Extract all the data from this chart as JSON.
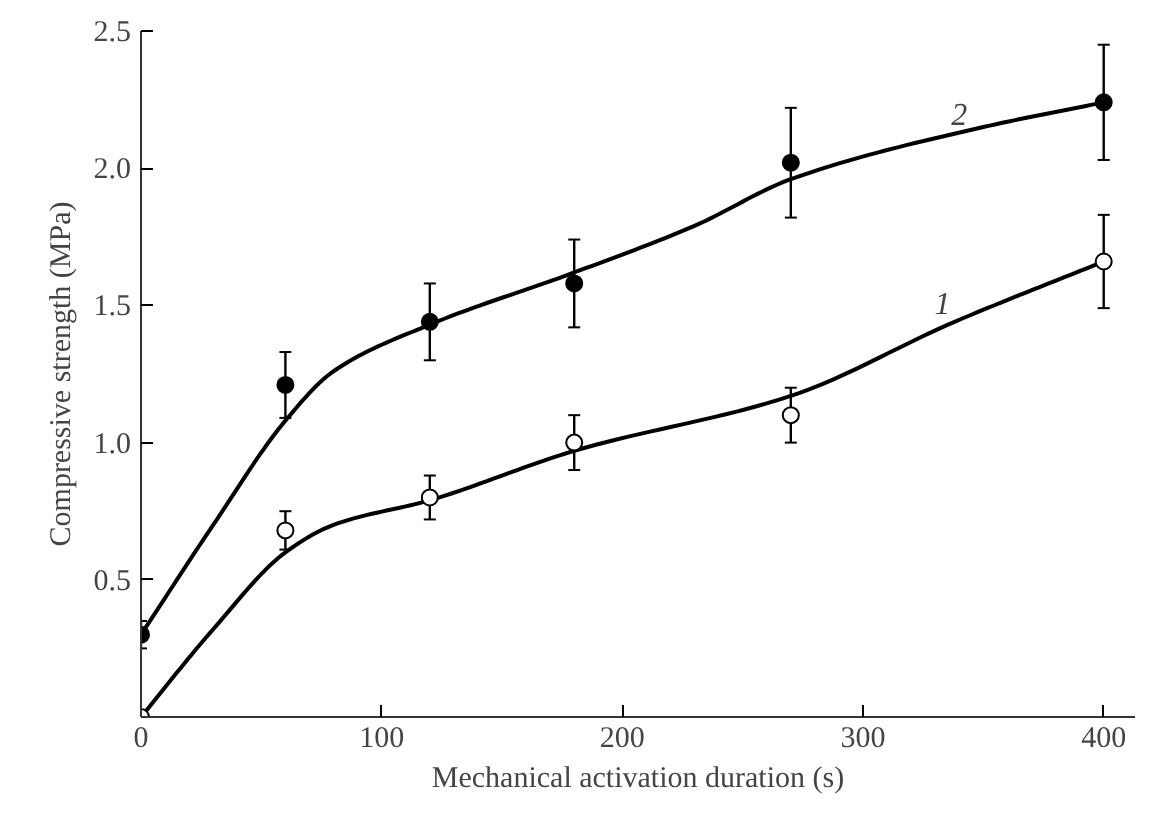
{
  "chart_data": {
    "type": "scatter",
    "xlabel": "Mechanical activation duration (s)",
    "ylabel": "Compressive strength (MPa)",
    "xlim": [
      0,
      413
    ],
    "ylim": [
      0,
      2.5
    ],
    "xticks": [
      0,
      100,
      200,
      300,
      400
    ],
    "yticks": [
      0.5,
      {
        "value": 1,
        "label": "1.0"
      },
      1.5,
      {
        "value": 2,
        "label": "2.0"
      },
      2.5
    ],
    "grid": false,
    "marker": "circle",
    "series": [
      {
        "color": "#ffffff",
        "x": [
          0,
          60,
          120,
          180,
          270,
          400
        ],
        "values": [
          0,
          0.68,
          0.8,
          1.0,
          1.1,
          1.66
        ],
        "errors": [
          null,
          0.07,
          0.08,
          0.1,
          0.1,
          0.17
        ]
      },
      {
        "color": "#000000",
        "x": [
          0,
          60,
          120,
          180,
          270,
          400
        ],
        "values": [
          0.3,
          1.21,
          1.44,
          1.58,
          2.02,
          2.24
        ],
        "errors": [
          0.05,
          0.12,
          0.14,
          0.16,
          0.2,
          0.21
        ]
      },
      {
        "type": "line",
        "color": "#000000",
        "marker": "none",
        "x": [
          0,
          30,
          60,
          80,
          120,
          180,
          270,
          338,
          400
        ],
        "values": [
          0,
          0.32,
          0.6,
          0.7,
          0.79,
          0.97,
          1.17,
          1.44,
          1.66
        ]
      },
      {
        "type": "line",
        "color": "#000000",
        "marker": "none",
        "x": [
          0,
          30,
          60,
          80,
          120,
          180,
          230,
          270,
          350,
          400
        ],
        "values": [
          0.3,
          0.7,
          1.08,
          1.26,
          1.43,
          1.62,
          1.79,
          1.96,
          2.15,
          2.24
        ]
      }
    ],
    "annotations": [
      {
        "text": "1",
        "x": 338,
        "y": 1.44
      },
      {
        "text": "2",
        "x": 345,
        "y": 2.13
      }
    ]
  }
}
